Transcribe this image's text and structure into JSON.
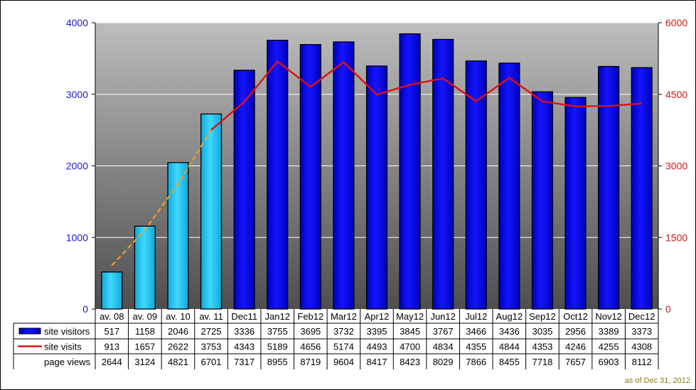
{
  "chart_data": {
    "type": "bar",
    "categories": [
      "av. 08",
      "av. 09",
      "av. 10",
      "av. 11",
      "Dec11",
      "Jan12",
      "Feb12",
      "Mar12",
      "Apr12",
      "May12",
      "Jun12",
      "Jul12",
      "Aug12",
      "Sep12",
      "Oct12",
      "Nov12",
      "Dec12"
    ],
    "series": [
      {
        "name": "site visitors",
        "type": "bar",
        "axis": "left",
        "color_early": "#1ec8ef",
        "color": "#0a0ae6",
        "values": [
          517,
          1158,
          2046,
          2725,
          3336,
          3755,
          3695,
          3732,
          3395,
          3845,
          3767,
          3466,
          3436,
          3035,
          2956,
          3389,
          3373
        ]
      },
      {
        "name": "site visits",
        "type": "line",
        "axis": "right",
        "color": "#e01010",
        "color_early": "#f0a020",
        "values": [
          913,
          1657,
          2622,
          3753,
          4343,
          5189,
          4656,
          5174,
          4493,
          4700,
          4834,
          4355,
          4844,
          4353,
          4246,
          4255,
          4308
        ]
      },
      {
        "name": "page views",
        "type": "table-only",
        "values": [
          2644,
          3124,
          4821,
          6701,
          7317,
          8955,
          8719,
          9604,
          8417,
          8423,
          8029,
          7866,
          8455,
          7718,
          7657,
          6903,
          8112
        ]
      }
    ],
    "early_count": 4,
    "ylim_left": [
      0,
      4000
    ],
    "yticks_left": [
      0,
      1000,
      2000,
      3000,
      4000
    ],
    "ylim_right": [
      0,
      6000
    ],
    "yticks_right": [
      0,
      1500,
      3000,
      4500,
      6000
    ],
    "grid": true,
    "legend_placement": "data-table"
  },
  "footnote": "as of Dec 31, 2012"
}
